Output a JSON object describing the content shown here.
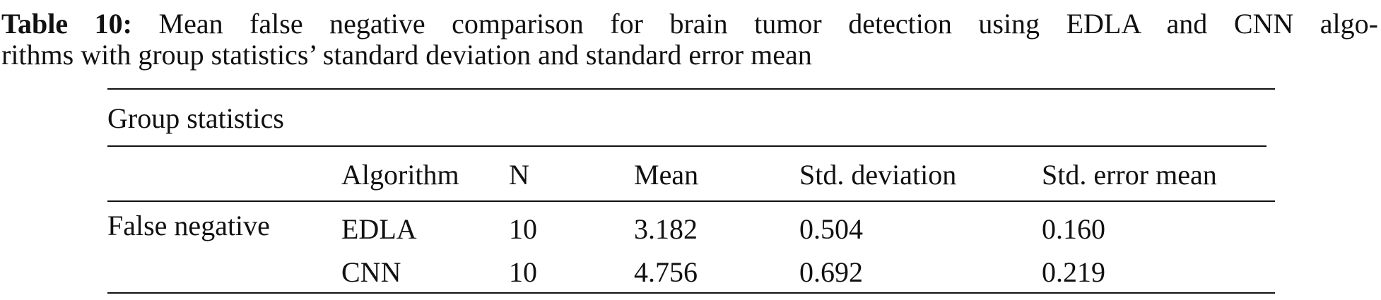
{
  "caption": {
    "label": "Table 10:",
    "lines": [
      "Mean false negative comparison for brain tumor detection using EDLA and CNN algo-",
      "rithms with group statistics’ standard deviation and standard error mean"
    ]
  },
  "table": {
    "group_label": "Group statistics",
    "headers": [
      "Algorithm",
      "N",
      "Mean",
      "Std. deviation",
      "Std. error mean"
    ],
    "row_label": "False negative",
    "rows": [
      [
        "EDLA",
        "10",
        "3.182",
        "0.504",
        "0.160"
      ],
      [
        "CNN",
        "10",
        "4.756",
        "0.692",
        "0.219"
      ]
    ]
  }
}
